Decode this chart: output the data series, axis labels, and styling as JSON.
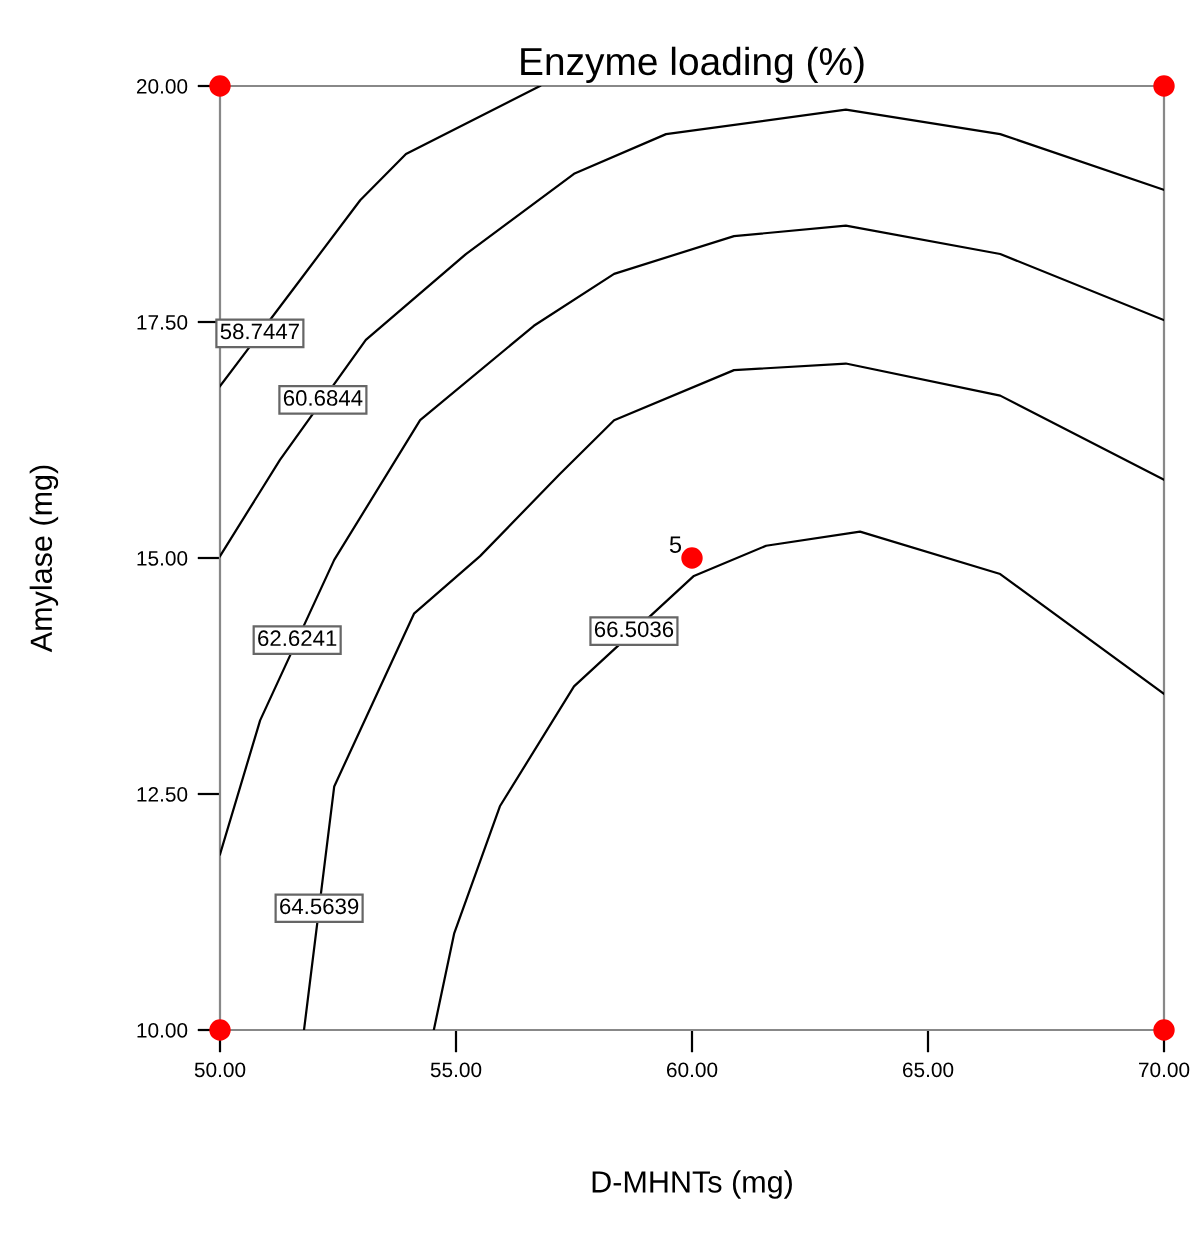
{
  "chart_data": {
    "type": "line",
    "title": "Enzyme loading (%)",
    "xlabel": "D-MHNTs (mg)",
    "ylabel": "Amylase (mg)",
    "xlim": [
      50,
      70
    ],
    "ylim": [
      10,
      20
    ],
    "xticks": [
      {
        "value": 50,
        "label": "50.00"
      },
      {
        "value": 55,
        "label": "55.00"
      },
      {
        "value": 60,
        "label": "60.00"
      },
      {
        "value": 65,
        "label": "65.00"
      },
      {
        "value": 70,
        "label": "70.00"
      }
    ],
    "yticks": [
      {
        "value": 10,
        "label": "10.00"
      },
      {
        "value": 12.5,
        "label": "12.50"
      },
      {
        "value": 15,
        "label": "15.00"
      },
      {
        "value": 17.5,
        "label": "17.50"
      },
      {
        "value": 20,
        "label": "20.00"
      }
    ],
    "grid": false,
    "legend": false,
    "marker": "none",
    "line_style": "solid",
    "series": [
      {
        "name": "58.7447",
        "color": "#000000",
        "x": [
          50,
          51.69,
          52.97,
          53.94,
          56.78
        ],
        "values": [
          16.82,
          17.94,
          18.79,
          19.28,
          20
        ]
      },
      {
        "name": "60.6844",
        "color": "#000000",
        "x": [
          50,
          51.27,
          53.09,
          55.21,
          57.5,
          59.45,
          63.26,
          66.53,
          70
        ],
        "values": [
          15.02,
          16.04,
          17.31,
          18.22,
          19.07,
          19.49,
          19.75,
          19.49,
          18.9
        ]
      },
      {
        "name": "62.6241",
        "color": "#000000",
        "x": [
          50,
          50.85,
          52.42,
          54.24,
          56.65,
          58.35,
          60.89,
          63.26,
          66.53,
          70
        ],
        "values": [
          11.86,
          13.28,
          14.98,
          16.46,
          17.46,
          18.01,
          18.41,
          18.52,
          18.22,
          17.52
        ]
      },
      {
        "name": "64.5639",
        "color": "#000000",
        "x": [
          51.78,
          52.42,
          54.11,
          55.51,
          57.2,
          58.35,
          60.89,
          63.26,
          66.53,
          70
        ],
        "values": [
          10,
          12.58,
          14.41,
          15.02,
          15.89,
          16.46,
          16.99,
          17.06,
          16.72,
          15.83
        ]
      },
      {
        "name": "66.5036",
        "color": "#000000",
        "x": [
          54.53,
          54.96,
          55.93,
          57.5,
          60.04,
          61.57,
          63.56,
          66.53,
          70
        ],
        "values": [
          10,
          11.02,
          12.37,
          13.64,
          14.81,
          15.13,
          15.28,
          14.83,
          13.56
        ]
      },
      {
        "type": "scatter",
        "color": "#ff0000",
        "marker": "circle",
        "x": [
          50,
          50,
          70,
          70,
          60
        ],
        "values": [
          10,
          20,
          10,
          20,
          15
        ]
      }
    ],
    "annotations": [
      {
        "text": "5",
        "x": 60,
        "y": 15
      }
    ]
  }
}
